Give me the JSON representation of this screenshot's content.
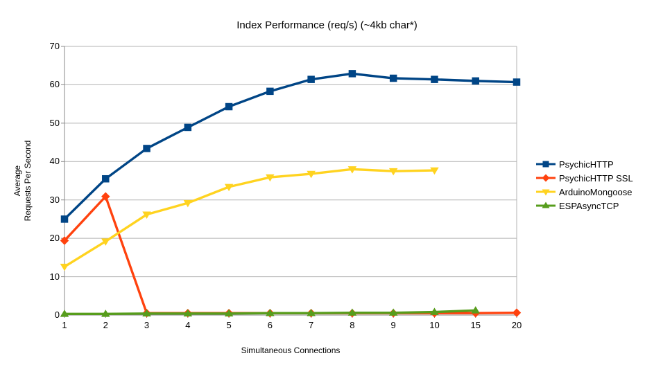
{
  "chart_data": {
    "type": "line",
    "title": "Index Performance (req/s) (~4kb char*)",
    "xlabel": "Simultaneous Connections",
    "ylabel_lines": [
      "Average",
      "Requests Per Second"
    ],
    "categories": [
      "1",
      "2",
      "3",
      "4",
      "5",
      "6",
      "7",
      "8",
      "9",
      "10",
      "15",
      "20"
    ],
    "y_ticks": [
      0,
      10,
      20,
      30,
      40,
      50,
      60,
      70
    ],
    "ylim": [
      0,
      70
    ],
    "grid": "horizontal",
    "legend_position": "right",
    "grid_color": "#b3b3b3",
    "axis_color": "#888888",
    "series": [
      {
        "name": "PsychicHTTP",
        "color": "#004586",
        "marker": "square",
        "values": [
          25.0,
          35.5,
          43.4,
          48.9,
          54.3,
          58.3,
          61.4,
          62.9,
          61.7,
          61.4,
          61.0,
          60.7
        ]
      },
      {
        "name": "PsychicHTTP SSL",
        "color": "#FF420E",
        "marker": "diamond",
        "values": [
          19.4,
          30.9,
          0.5,
          0.5,
          0.5,
          0.5,
          0.5,
          0.5,
          0.5,
          0.5,
          0.5,
          0.6
        ]
      },
      {
        "name": "ArduinoMongoose",
        "color": "#FFD320",
        "marker": "triangle-down",
        "values": [
          12.6,
          19.2,
          26.2,
          29.2,
          33.4,
          35.9,
          36.8,
          38.0,
          37.5,
          37.7,
          null,
          null
        ]
      },
      {
        "name": "ESPAsyncTCP",
        "color": "#579D1C",
        "marker": "triangle-up",
        "values": [
          0.3,
          0.3,
          0.4,
          0.4,
          0.4,
          0.5,
          0.5,
          0.6,
          0.6,
          0.8,
          1.2,
          null
        ]
      }
    ]
  }
}
